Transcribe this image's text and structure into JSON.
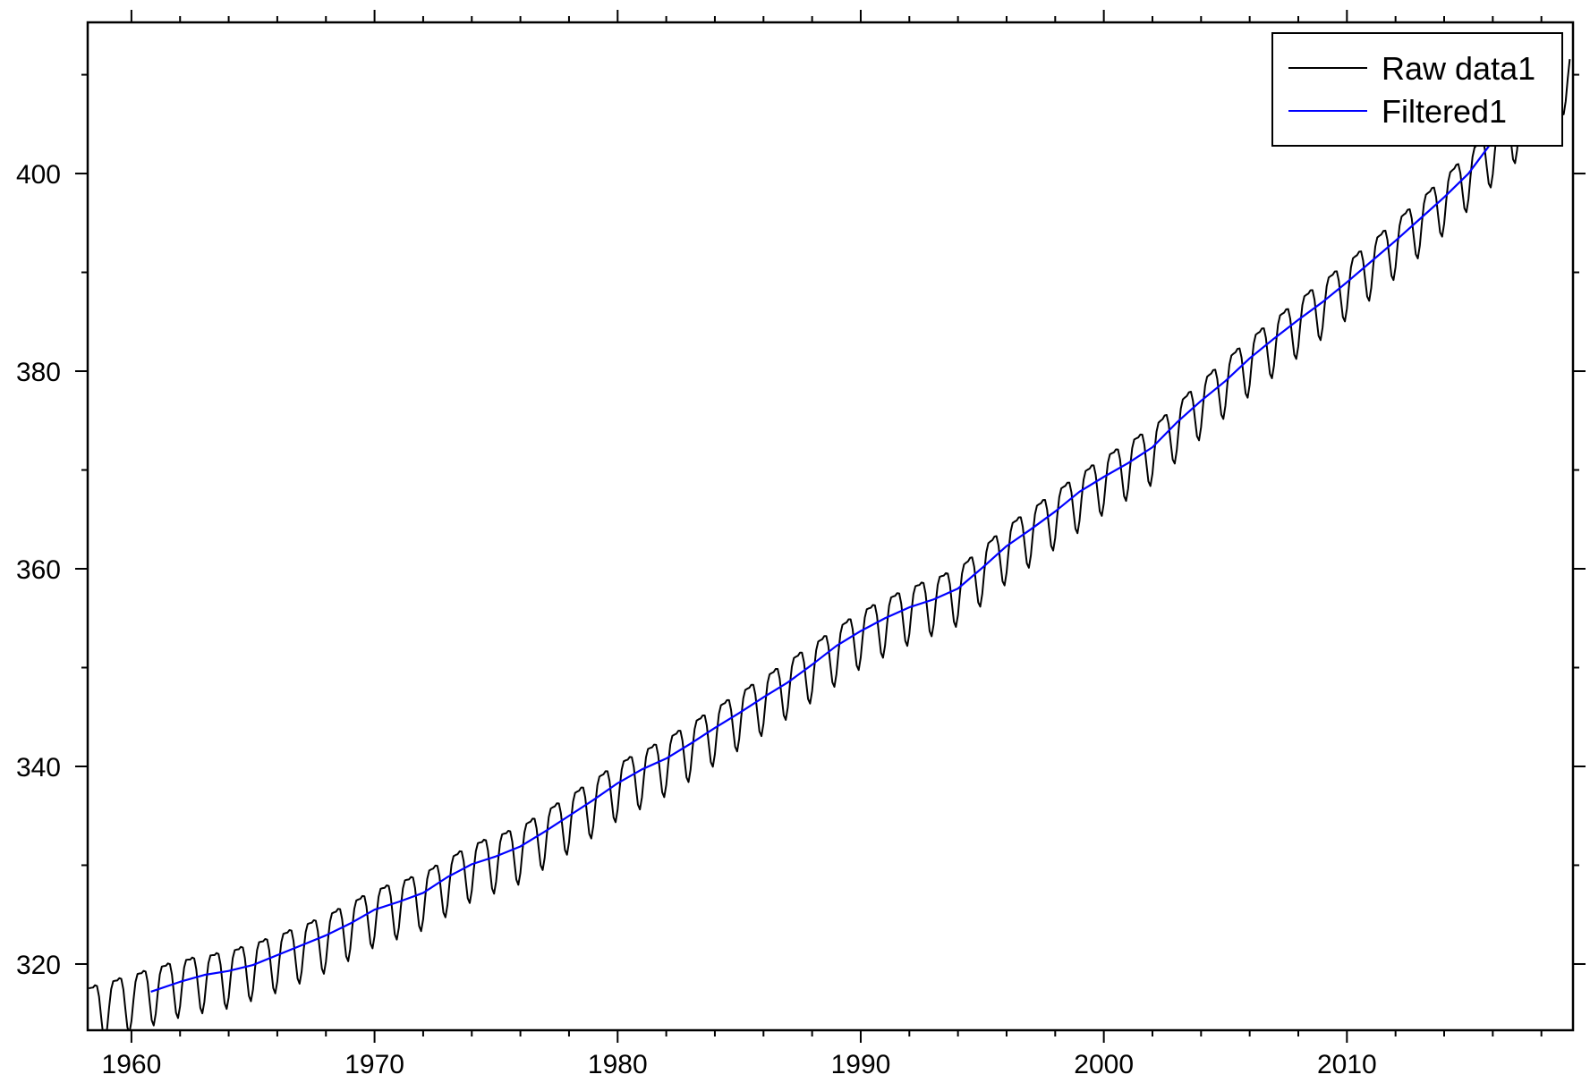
{
  "chart_data": {
    "type": "line",
    "title": "",
    "xlabel": "",
    "ylabel": "",
    "xlim": [
      1958.2,
      2019.3
    ],
    "ylim": [
      313.3,
      415.3
    ],
    "x_ticks": [
      1960,
      1970,
      1980,
      1990,
      2000,
      2010
    ],
    "x_tick_labels": [
      "1960",
      "1970",
      "1980",
      "1990",
      "2000",
      "2010"
    ],
    "y_ticks": [
      320,
      340,
      360,
      380,
      400
    ],
    "y_tick_labels": [
      "320",
      "340",
      "360",
      "380",
      "400"
    ],
    "x_minor_step": 2,
    "y_minor_step": 10,
    "grid": false,
    "legend_position": "top-right",
    "series": [
      {
        "name": "Raw data1",
        "color": "#000000",
        "kind": "monthly",
        "x_start": 1958.25,
        "x_end": 2019.2,
        "step_months": 1,
        "seasonal_amplitude": 3.3,
        "trend_knots": [
          [
            1958.2,
            315.6
          ],
          [
            1960,
            316.9
          ],
          [
            1962,
            318.4
          ],
          [
            1964,
            319.3
          ],
          [
            1966,
            320.9
          ],
          [
            1968,
            322.9
          ],
          [
            1970,
            325.5
          ],
          [
            1972,
            327.2
          ],
          [
            1974,
            330.1
          ],
          [
            1976,
            331.9
          ],
          [
            1978,
            335.0
          ],
          [
            1980,
            338.3
          ],
          [
            1982,
            340.8
          ],
          [
            1984,
            343.9
          ],
          [
            1986,
            347.0
          ],
          [
            1988,
            350.3
          ],
          [
            1990,
            353.7
          ],
          [
            1992,
            356.1
          ],
          [
            1994,
            358.0
          ],
          [
            1996,
            362.3
          ],
          [
            1998,
            365.8
          ],
          [
            2000,
            369.3
          ],
          [
            2002,
            372.3
          ],
          [
            2004,
            377.0
          ],
          [
            2006,
            381.3
          ],
          [
            2008,
            385.2
          ],
          [
            2010,
            389.0
          ],
          [
            2012,
            393.2
          ],
          [
            2014,
            397.6
          ],
          [
            2016,
            402.6
          ],
          [
            2018,
            407.5
          ],
          [
            2019.2,
            410.5
          ]
        ]
      },
      {
        "name": "Filtered1",
        "color": "#0000ff",
        "kind": "smooth",
        "points": [
          [
            1960.8,
            317.2
          ],
          [
            1962,
            318.2
          ],
          [
            1963,
            318.9
          ],
          [
            1964,
            319.3
          ],
          [
            1965,
            319.9
          ],
          [
            1966,
            320.9
          ],
          [
            1967,
            321.9
          ],
          [
            1968,
            322.9
          ],
          [
            1969,
            324.1
          ],
          [
            1970,
            325.5
          ],
          [
            1971,
            326.3
          ],
          [
            1972,
            327.2
          ],
          [
            1973,
            328.8
          ],
          [
            1974,
            330.1
          ],
          [
            1975,
            330.9
          ],
          [
            1976,
            331.9
          ],
          [
            1977,
            333.4
          ],
          [
            1978,
            335.0
          ],
          [
            1979,
            336.6
          ],
          [
            1980,
            338.3
          ],
          [
            1981,
            339.7
          ],
          [
            1982,
            340.8
          ],
          [
            1983,
            342.3
          ],
          [
            1984,
            343.9
          ],
          [
            1985,
            345.4
          ],
          [
            1986,
            347.0
          ],
          [
            1987,
            348.5
          ],
          [
            1988,
            350.3
          ],
          [
            1989,
            352.2
          ],
          [
            1990,
            353.7
          ],
          [
            1991,
            355.0
          ],
          [
            1992,
            356.1
          ],
          [
            1993,
            356.9
          ],
          [
            1994,
            358.0
          ],
          [
            1995,
            360.1
          ],
          [
            1996,
            362.3
          ],
          [
            1997,
            364.0
          ],
          [
            1998,
            365.8
          ],
          [
            1999,
            367.8
          ],
          [
            2000,
            369.3
          ],
          [
            2001,
            370.7
          ],
          [
            2002,
            372.3
          ],
          [
            2003,
            374.8
          ],
          [
            2004,
            377.0
          ],
          [
            2005,
            379.0
          ],
          [
            2006,
            381.3
          ],
          [
            2007,
            383.3
          ],
          [
            2008,
            385.2
          ],
          [
            2009,
            387.0
          ],
          [
            2010,
            389.0
          ],
          [
            2011,
            391.1
          ],
          [
            2012,
            393.2
          ],
          [
            2013,
            395.4
          ],
          [
            2014,
            397.6
          ],
          [
            2015,
            400.0
          ],
          [
            2016,
            403.3
          ]
        ]
      }
    ]
  }
}
